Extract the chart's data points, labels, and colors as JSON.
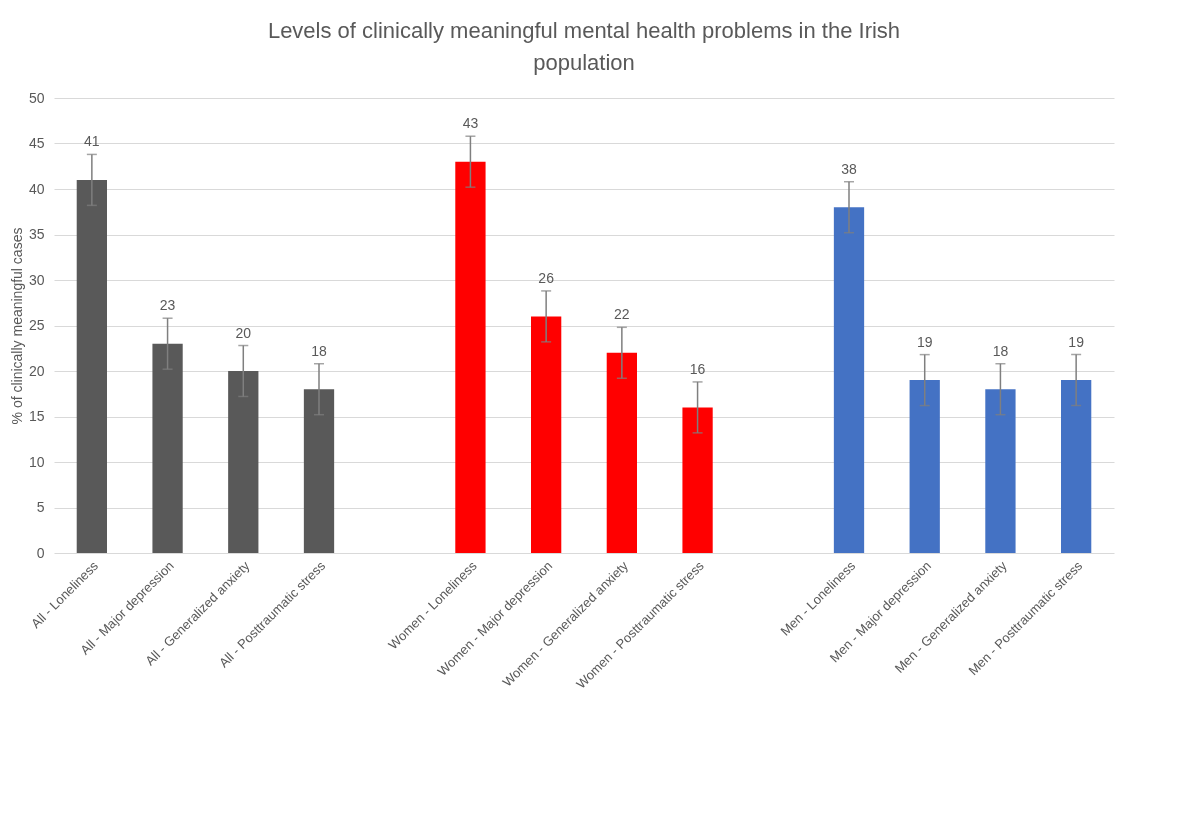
{
  "chart_data": {
    "type": "bar",
    "title": "Levels of clinically meaningful mental health problems in the Irish population",
    "ylabel": "% of clinically meaningful cases",
    "categories": [
      "All - Loneliness",
      "All - Major depression",
      "All - Generalized anxiety",
      "All - Posttraumatic stress",
      null,
      "Women - Loneliness",
      "Women - Major depression",
      "Women - Generalized anxiety",
      "Women - Posttraumatic stress",
      null,
      "Men - Loneliness",
      "Men - Major depression",
      "Men - Generalized anxiety",
      "Men - Posttraumatic stress"
    ],
    "values": [
      41,
      23,
      20,
      18,
      null,
      43,
      26,
      22,
      16,
      null,
      38,
      19,
      18,
      19
    ],
    "errors": [
      2.8,
      2.8,
      2.8,
      2.8,
      null,
      2.8,
      2.8,
      2.8,
      2.8,
      null,
      2.8,
      2.8,
      2.8,
      2.8
    ],
    "colors": [
      "#595959",
      "#595959",
      "#595959",
      "#595959",
      null,
      "#ff0000",
      "#ff0000",
      "#ff0000",
      "#ff0000",
      null,
      "#4472c4",
      "#4472c4",
      "#4472c4",
      "#4472c4"
    ],
    "ylim": [
      0,
      50
    ],
    "yticks": [
      0,
      5,
      10,
      15,
      20,
      25,
      30,
      35,
      40,
      45,
      50
    ],
    "grid": "y",
    "data_labels": true
  }
}
